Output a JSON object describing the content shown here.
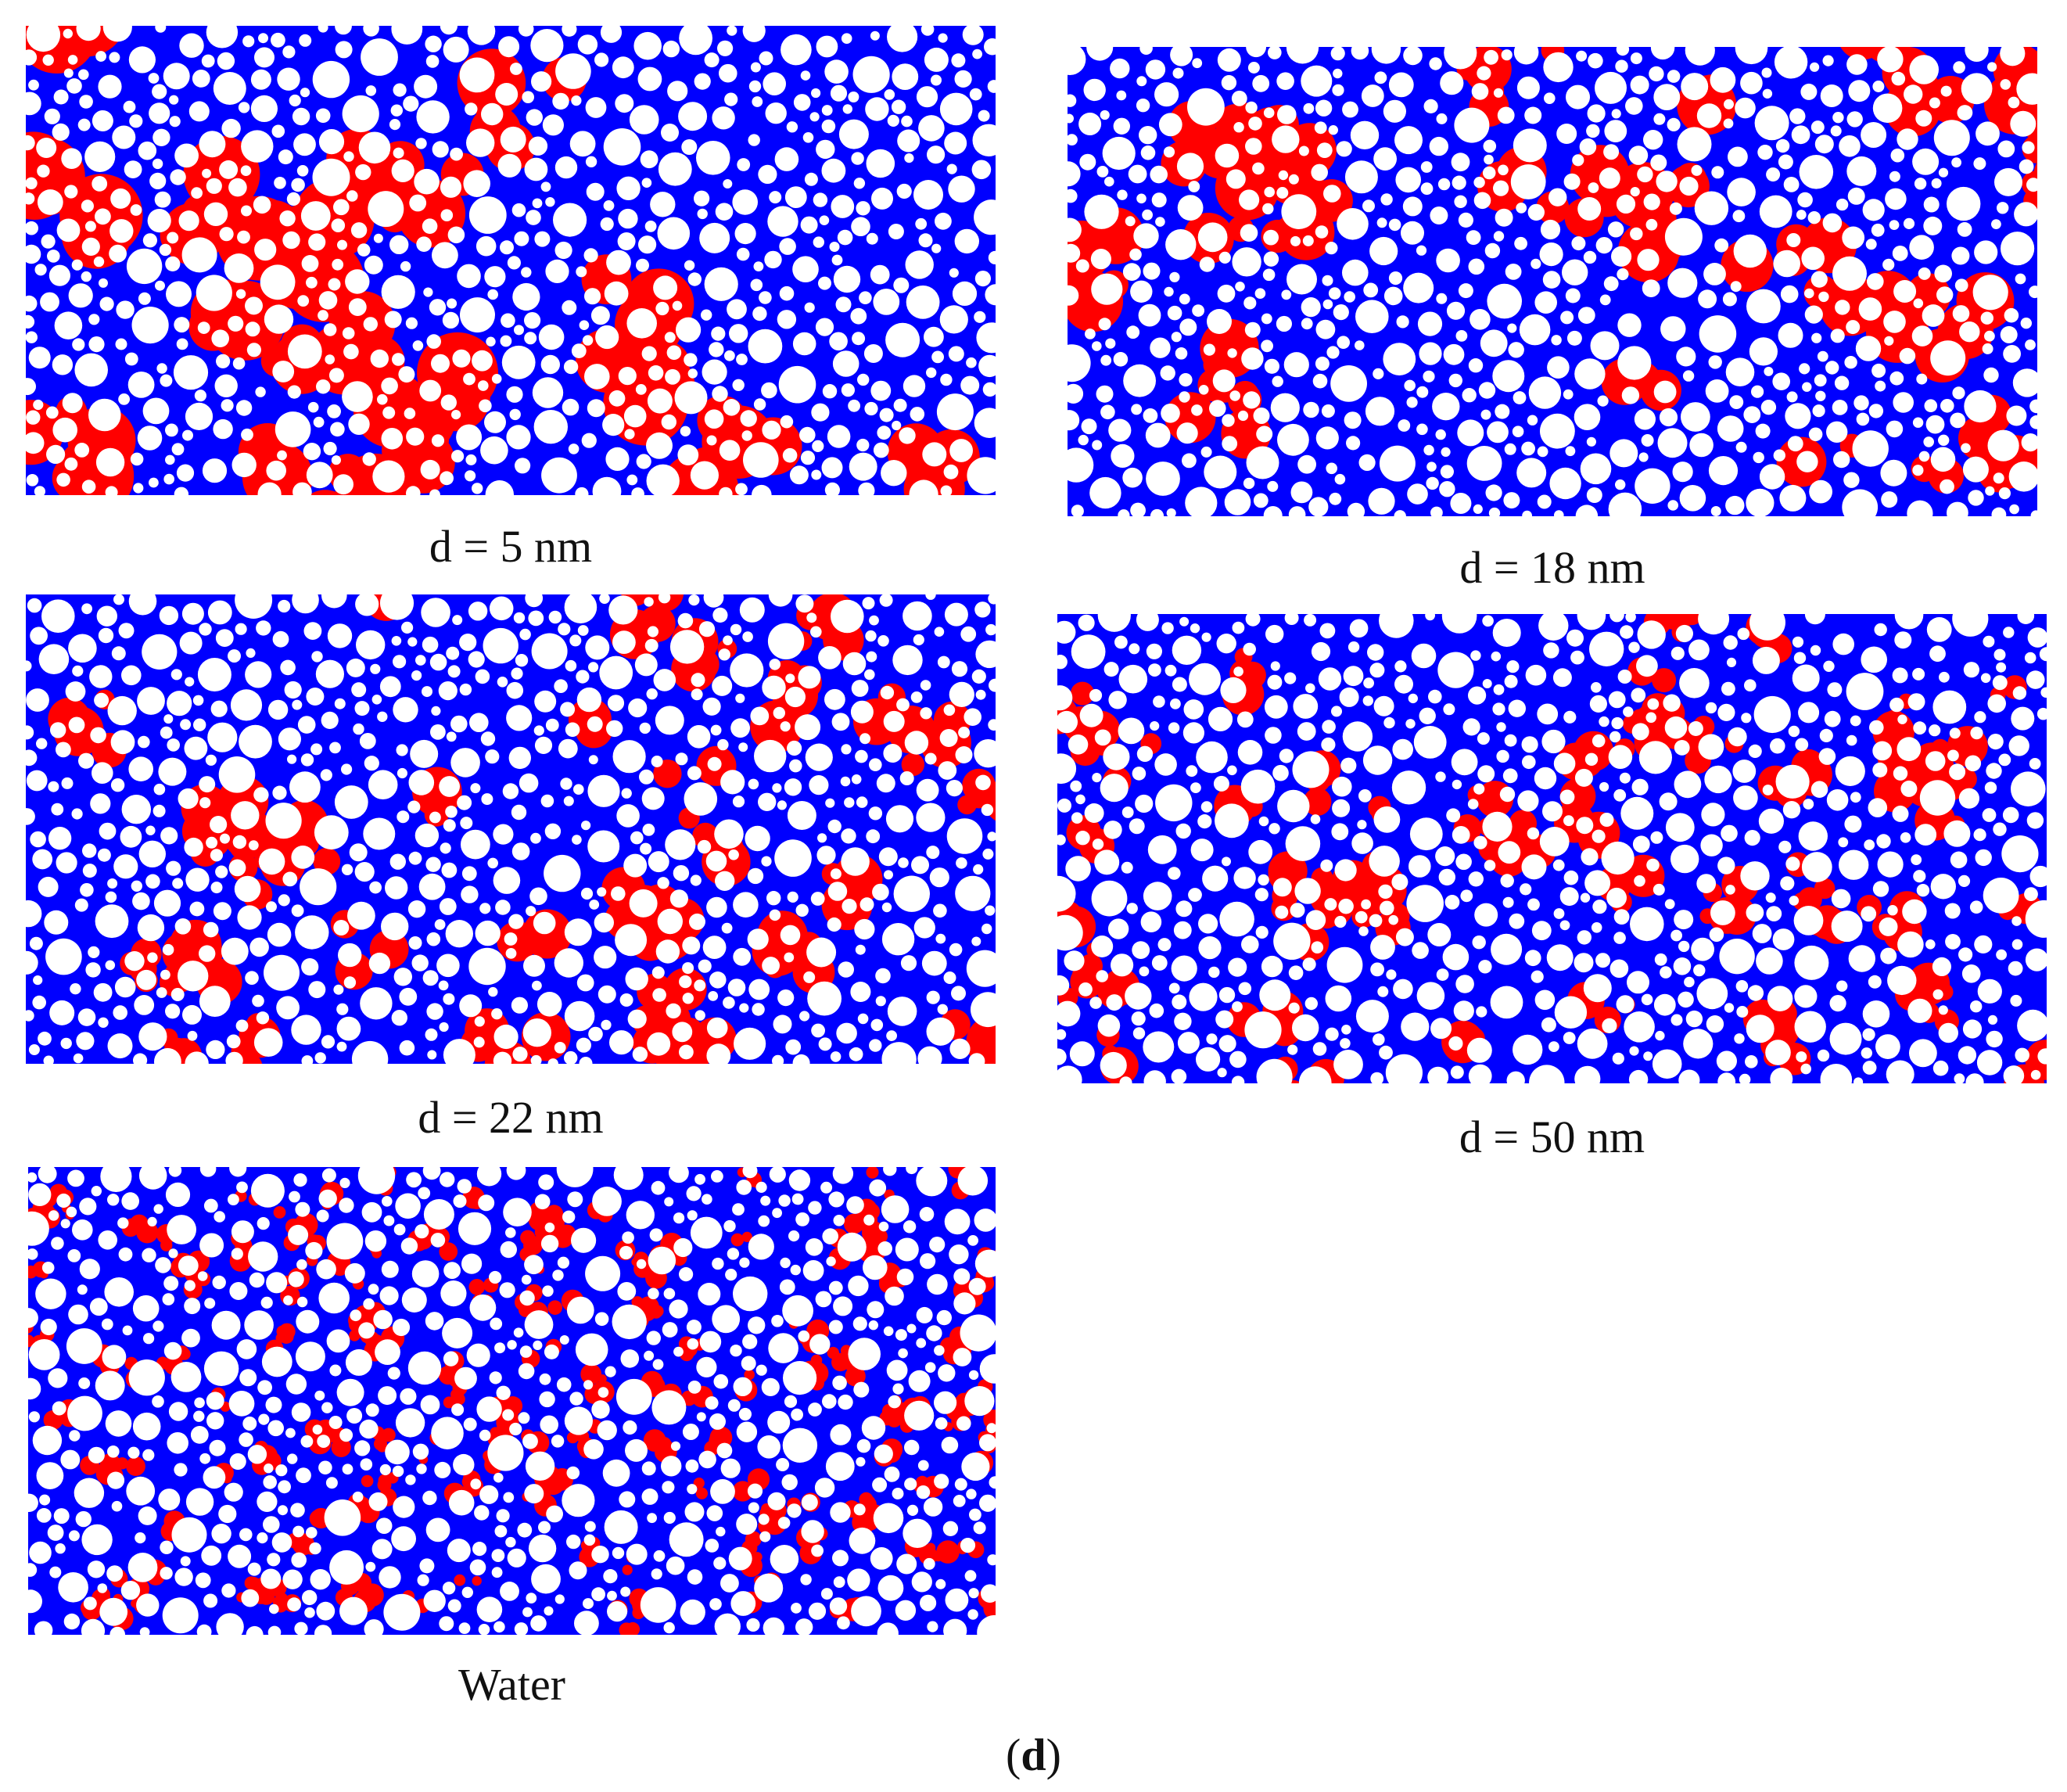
{
  "figure_label": {
    "open": "(",
    "letter": "d",
    "close": ")"
  },
  "colors": {
    "fluid_blue": "#0000ff",
    "phase_red": "#ff0000",
    "grain_white": "#ffffff",
    "interface_green": "#2e8b57"
  },
  "panels": [
    {
      "id": "d5",
      "caption": "d = 5 nm",
      "red_patches": 22,
      "red_size": 1.6,
      "seed": 11
    },
    {
      "id": "d18",
      "caption": "d = 18 nm",
      "red_patches": 30,
      "red_size": 1.2,
      "seed": 23
    },
    {
      "id": "d22",
      "caption": "d = 22 nm",
      "red_patches": 36,
      "red_size": 1.0,
      "seed": 37
    },
    {
      "id": "d50",
      "caption": "d = 50 nm",
      "red_patches": 55,
      "red_size": 0.8,
      "seed": 41
    },
    {
      "id": "water",
      "caption": "Water",
      "red_patches": 140,
      "red_size": 0.45,
      "seed": 53
    }
  ]
}
